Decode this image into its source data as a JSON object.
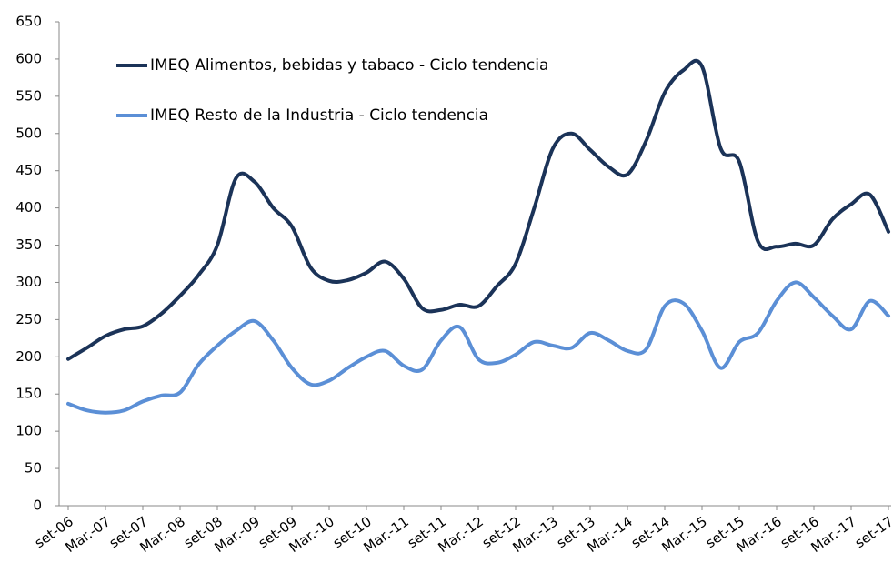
{
  "chart_data": {
    "type": "line",
    "categories": [
      "set-06",
      null,
      "Mar.-07",
      null,
      "set-07",
      null,
      "Mar.-08",
      null,
      "set-08",
      null,
      "Mar.-09",
      null,
      "set-09",
      null,
      "Mar.-10",
      null,
      "set-10",
      null,
      "Mar.-11",
      null,
      "set-11",
      null,
      "Mar.-12",
      null,
      "set-12",
      null,
      "Mar.-13",
      null,
      "set-13",
      null,
      "Mar.-14",
      null,
      "set-14",
      null,
      "Mar.-15",
      null,
      "set-15",
      null,
      "Mar.-16",
      null,
      "set-16",
      null,
      "Mar.-17",
      null,
      "set-17"
    ],
    "series": [
      {
        "name": "IMEQ Alimentos, bebidas y tabaco - Ciclo tendencia",
        "color": "#1b3358",
        "values": [
          197,
          212,
          228,
          237,
          241,
          258,
          282,
          310,
          350,
          440,
          435,
          400,
          375,
          320,
          302,
          303,
          313,
          328,
          305,
          265,
          263,
          270,
          268,
          295,
          325,
          400,
          480,
          500,
          478,
          455,
          445,
          490,
          555,
          585,
          590,
          480,
          462,
          355,
          348,
          352,
          350,
          385,
          405,
          418,
          368
        ]
      },
      {
        "name": "IMEQ Resto de la Industria - Ciclo tendencia",
        "color": "#5b8fd6",
        "values": [
          137,
          128,
          125,
          128,
          140,
          148,
          152,
          190,
          215,
          235,
          248,
          222,
          185,
          163,
          168,
          185,
          200,
          208,
          188,
          183,
          222,
          240,
          197,
          192,
          203,
          220,
          215,
          212,
          232,
          222,
          208,
          210,
          268,
          272,
          235,
          185,
          220,
          232,
          275,
          300,
          280,
          255,
          237,
          275,
          255
        ]
      }
    ],
    "ylim": [
      0,
      650
    ],
    "yticks": [
      0,
      50,
      100,
      150,
      200,
      250,
      300,
      350,
      400,
      450,
      500,
      550,
      600,
      650
    ],
    "grid": false
  }
}
